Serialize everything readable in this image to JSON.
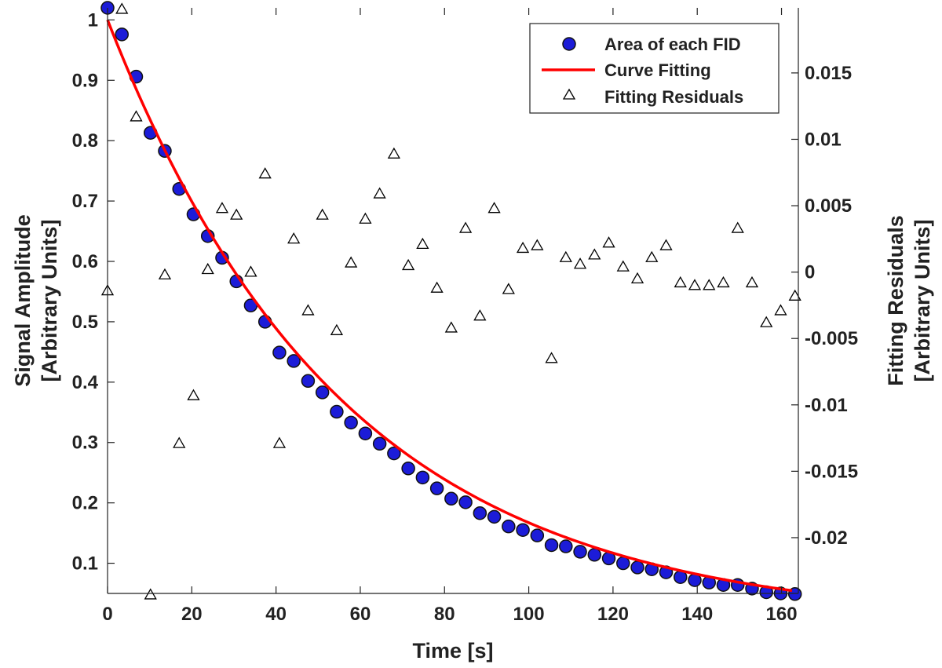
{
  "chart_data": {
    "type": "scatter",
    "xlabel": "Time [s]",
    "ylabel_left": [
      "Signal Amplitude",
      "[Arbitrary Units]"
    ],
    "ylabel_right": [
      "Fitting Residuals",
      "[Arbitrary Units]"
    ],
    "xlim": [
      0,
      164
    ],
    "ylim_left": [
      0.05,
      1.02
    ],
    "ylim_right": [
      -0.0242,
      0.0199
    ],
    "x_ticks": [
      0,
      20,
      40,
      60,
      80,
      100,
      120,
      140,
      160
    ],
    "x_tick_labels": [
      "0",
      "20",
      "40",
      "60",
      "80",
      "100",
      "120",
      "140",
      "160"
    ],
    "y_left_ticks": [
      0.1,
      0.2,
      0.3,
      0.4,
      0.5,
      0.6,
      0.7,
      0.8,
      0.9,
      1
    ],
    "y_left_tick_labels": [
      "0.1",
      "0.2",
      "0.3",
      "0.4",
      "0.5",
      "0.6",
      "0.7",
      "0.8",
      "0.9",
      "1"
    ],
    "y_right_ticks": [
      -0.02,
      -0.015,
      -0.01,
      -0.005,
      0,
      0.005,
      0.01,
      0.015
    ],
    "y_right_tick_labels": [
      "-0.02",
      "-0.015",
      "-0.01",
      "-0.005",
      "0",
      "0.005",
      "0.01",
      "0.015"
    ],
    "grid": false,
    "legend_position": "top-right",
    "colors": {
      "points": "#1c1cd8",
      "points_edge": "#111111",
      "fit": "#ff0000",
      "residuals": "#000000",
      "axes": "#222222"
    },
    "fit_model": {
      "form": "a*exp(-t/T)",
      "a": 1.0,
      "T": 55.9
    },
    "series": [
      {
        "name": "Area of each FID",
        "marker": "circle",
        "axis": "left",
        "x": [
          0,
          3.4,
          6.8,
          10.2,
          13.6,
          17.0,
          20.4,
          23.8,
          27.2,
          30.6,
          34.0,
          37.4,
          40.8,
          44.2,
          47.6,
          51.0,
          54.4,
          57.8,
          61.2,
          64.6,
          68.0,
          71.4,
          74.8,
          78.2,
          81.6,
          85.0,
          88.4,
          91.8,
          95.2,
          98.6,
          102.0,
          105.4,
          108.8,
          112.2,
          115.6,
          119.0,
          122.4,
          125.8,
          129.2,
          132.6,
          136.0,
          139.4,
          142.8,
          146.2,
          149.6,
          153.0,
          156.4,
          159.8,
          163.2
        ],
        "values": [
          1.02,
          0.976,
          0.906,
          0.813,
          0.783,
          0.72,
          0.678,
          0.642,
          0.606,
          0.567,
          0.527,
          0.5,
          0.449,
          0.435,
          0.402,
          0.383,
          0.351,
          0.333,
          0.315,
          0.298,
          0.282,
          0.257,
          0.242,
          0.224,
          0.207,
          0.201,
          0.183,
          0.177,
          0.161,
          0.155,
          0.146,
          0.13,
          0.128,
          0.119,
          0.114,
          0.108,
          0.1,
          0.093,
          0.09,
          0.085,
          0.077,
          0.072,
          0.068,
          0.064,
          0.064,
          0.058,
          0.052,
          0.05,
          0.049
        ]
      },
      {
        "name": "Curve Fitting",
        "marker": "line",
        "axis": "left"
      },
      {
        "name": "Fitting Residuals",
        "marker": "triangle",
        "axis": "right",
        "x": [
          0,
          3.4,
          6.8,
          10.2,
          13.6,
          17.0,
          20.4,
          23.8,
          27.2,
          30.6,
          34.0,
          37.4,
          40.8,
          44.2,
          47.6,
          51.0,
          54.4,
          57.8,
          61.2,
          64.6,
          68.0,
          71.4,
          74.8,
          78.2,
          81.6,
          85.0,
          88.4,
          91.8,
          95.2,
          98.6,
          102.0,
          105.4,
          108.8,
          112.2,
          115.6,
          119.0,
          122.4,
          125.8,
          129.2,
          132.6,
          136.0,
          139.4,
          142.8,
          146.2,
          149.6,
          153.0,
          156.4,
          159.8,
          163.2
        ],
        "values": [
          -0.0014,
          0.0198,
          0.0117,
          -0.0243,
          -0.0002,
          -0.0129,
          -0.0093,
          0.0002,
          0.0048,
          0.0043,
          0.0,
          0.0074,
          -0.0129,
          0.0025,
          -0.0029,
          0.0043,
          -0.0044,
          0.0007,
          0.004,
          0.0059,
          0.0089,
          0.0005,
          0.0021,
          -0.0012,
          -0.0042,
          0.0033,
          -0.0033,
          0.0048,
          -0.0013,
          0.0018,
          0.002,
          -0.0065,
          0.0011,
          0.0006,
          0.0013,
          0.0022,
          0.0004,
          -0.0005,
          0.0011,
          0.002,
          -0.0008,
          -0.001,
          -0.001,
          -0.0008,
          0.0033,
          -0.0008,
          -0.0038,
          -0.0029,
          -0.0018
        ]
      }
    ]
  }
}
